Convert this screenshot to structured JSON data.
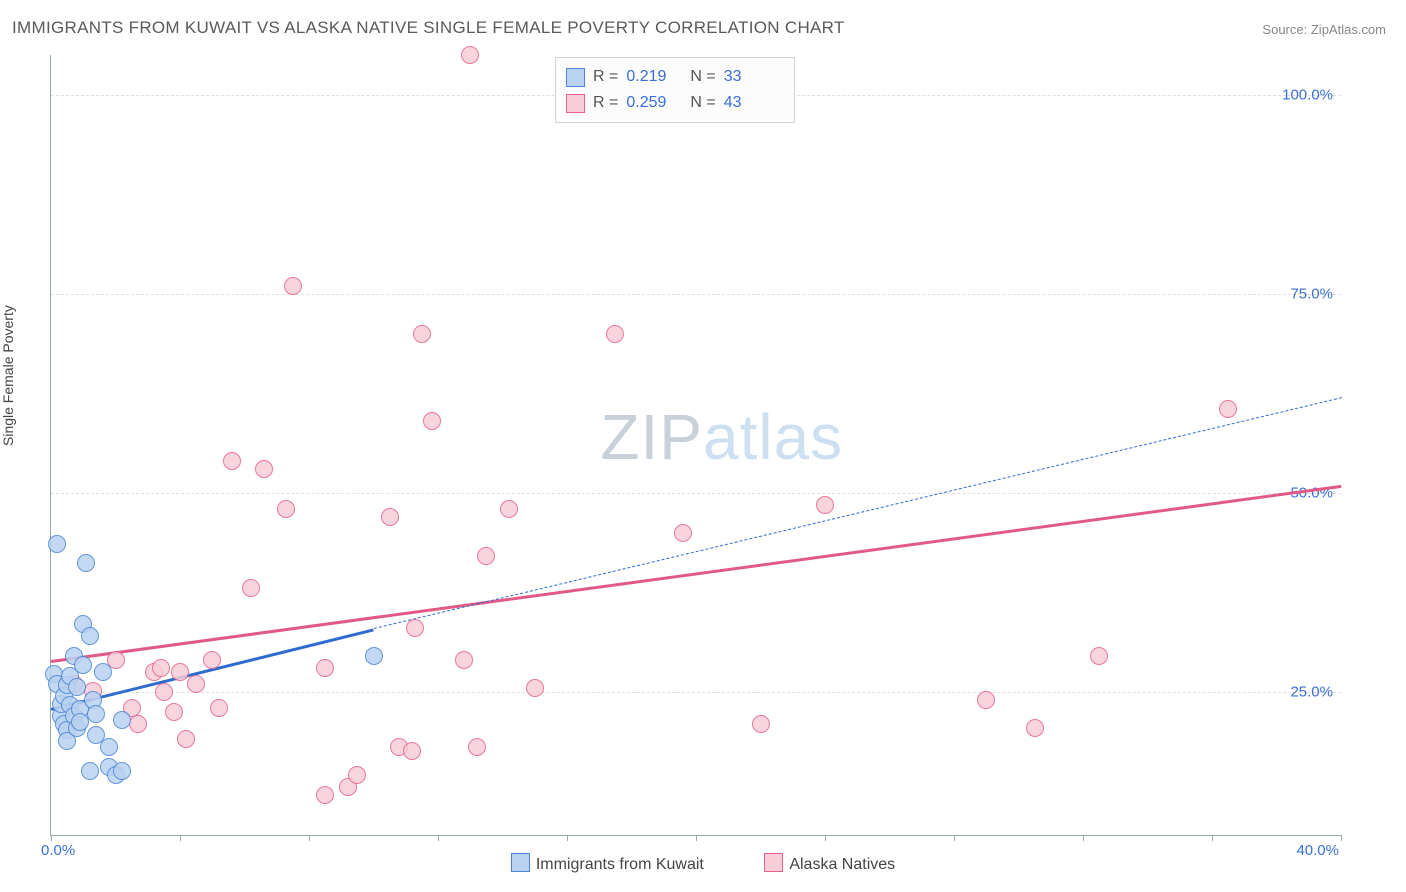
{
  "header": {
    "title": "IMMIGRANTS FROM KUWAIT VS ALASKA NATIVE SINGLE FEMALE POVERTY CORRELATION CHART",
    "source_label": "Source:",
    "source_name": "ZipAtlas.com"
  },
  "chart": {
    "type": "scatter",
    "y_label": "Single Female Poverty",
    "x_range": [
      0,
      40
    ],
    "y_range": [
      7,
      105
    ],
    "x_ticks": [
      0,
      4,
      8,
      12,
      16,
      20,
      24,
      28,
      32,
      36,
      40
    ],
    "x_tick_labels": {
      "min": "0.0%",
      "max": "40.0%"
    },
    "y_ticks": [
      25,
      50,
      75,
      100
    ],
    "y_tick_labels": [
      "25.0%",
      "50.0%",
      "75.0%",
      "100.0%"
    ],
    "grid_color": "#e0e0e0",
    "background": "#ffffff",
    "marker_size": 16,
    "series": [
      {
        "name": "Immigrants from Kuwait",
        "fill": "#b9d2f0",
        "stroke": "#4a86d6",
        "R": "0.219",
        "N": "33",
        "trend": {
          "x1": 0,
          "y1": 23,
          "x2": 10,
          "y2": 33,
          "dashed_x2": 40,
          "dashed_y2": 62,
          "color": "#2f6bd0"
        },
        "points": [
          [
            0.1,
            27.2
          ],
          [
            0.2,
            26.0
          ],
          [
            0.2,
            43.5
          ],
          [
            0.3,
            22.0
          ],
          [
            0.3,
            23.5
          ],
          [
            0.4,
            21.0
          ],
          [
            0.4,
            24.5
          ],
          [
            0.5,
            25.8
          ],
          [
            0.5,
            20.2
          ],
          [
            0.5,
            18.8
          ],
          [
            0.6,
            27.0
          ],
          [
            0.6,
            23.3
          ],
          [
            0.7,
            22.0
          ],
          [
            0.7,
            29.5
          ],
          [
            0.8,
            20.4
          ],
          [
            0.8,
            25.6
          ],
          [
            0.9,
            22.8
          ],
          [
            0.9,
            21.2
          ],
          [
            1.0,
            33.5
          ],
          [
            1.0,
            28.4
          ],
          [
            1.1,
            41.2
          ],
          [
            1.2,
            32.0
          ],
          [
            1.2,
            15.0
          ],
          [
            1.3,
            24.0
          ],
          [
            1.4,
            19.6
          ],
          [
            1.4,
            22.2
          ],
          [
            1.6,
            27.5
          ],
          [
            1.8,
            15.5
          ],
          [
            1.8,
            18.0
          ],
          [
            2.0,
            14.5
          ],
          [
            2.2,
            15.0
          ],
          [
            2.2,
            21.5
          ],
          [
            10.0,
            29.5
          ]
        ]
      },
      {
        "name": "Alaska Natives",
        "fill": "#f7cdd9",
        "stroke": "#e6628a",
        "R": "0.259",
        "N": "43",
        "trend": {
          "x1": 0,
          "y1": 29,
          "x2": 40,
          "y2": 51,
          "color": "#e05a85"
        },
        "points": [
          [
            0.7,
            26.0
          ],
          [
            1.3,
            25.1
          ],
          [
            2.0,
            29.0
          ],
          [
            2.5,
            23.0
          ],
          [
            2.7,
            21.0
          ],
          [
            3.2,
            27.5
          ],
          [
            3.4,
            28.0
          ],
          [
            3.5,
            25.0
          ],
          [
            3.8,
            22.5
          ],
          [
            4.0,
            27.5
          ],
          [
            4.2,
            19.0
          ],
          [
            4.5,
            26.0
          ],
          [
            5.0,
            29.0
          ],
          [
            5.2,
            23.0
          ],
          [
            5.6,
            54.0
          ],
          [
            6.2,
            38.0
          ],
          [
            6.6,
            53.0
          ],
          [
            7.3,
            48.0
          ],
          [
            7.5,
            76.0
          ],
          [
            8.5,
            28.0
          ],
          [
            8.5,
            12.0
          ],
          [
            9.2,
            13.0
          ],
          [
            9.5,
            14.5
          ],
          [
            10.5,
            47.0
          ],
          [
            10.8,
            18.0
          ],
          [
            11.2,
            17.5
          ],
          [
            11.3,
            33.0
          ],
          [
            11.5,
            70.0
          ],
          [
            11.8,
            59.0
          ],
          [
            12.8,
            29.0
          ],
          [
            13.0,
            105.0
          ],
          [
            13.2,
            18.0
          ],
          [
            13.5,
            42.0
          ],
          [
            14.2,
            48.0
          ],
          [
            15.0,
            25.5
          ],
          [
            17.5,
            70.0
          ],
          [
            19.6,
            45.0
          ],
          [
            22.0,
            21.0
          ],
          [
            24.0,
            48.5
          ],
          [
            29.0,
            24.0
          ],
          [
            30.5,
            20.5
          ],
          [
            32.5,
            29.5
          ],
          [
            36.5,
            60.5
          ]
        ]
      }
    ],
    "watermark": {
      "part1": "ZIP",
      "part2": "atlas"
    }
  },
  "legend_stats": {
    "R_label": "R  =",
    "N_label": "N  ="
  }
}
